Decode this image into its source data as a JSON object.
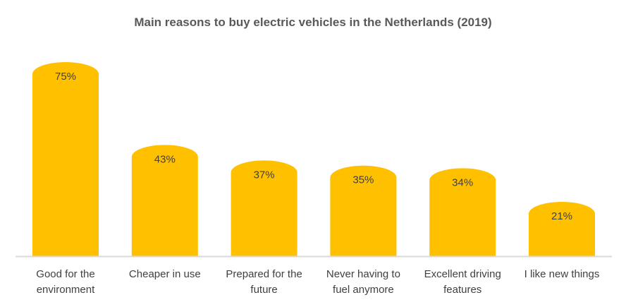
{
  "chart_data": {
    "type": "bar",
    "title": "Main reasons to buy electric vehicles in the Netherlands (2019)",
    "categories": [
      [
        "Good for the",
        "environment"
      ],
      [
        "Cheaper in use"
      ],
      [
        "Prepared for the",
        "future"
      ],
      [
        "Never having to",
        "fuel anymore"
      ],
      [
        "Excellent driving",
        "features"
      ],
      [
        "I like new things"
      ]
    ],
    "values": [
      75,
      43,
      37,
      35,
      34,
      21
    ],
    "data_labels": [
      "75%",
      "43%",
      "37%",
      "35%",
      "34%",
      "21%"
    ],
    "unit": "%",
    "ylim": [
      0,
      75
    ],
    "grid": false,
    "legend": "none",
    "bar_color": "#FFC000",
    "axis_color": "#D9D9D9"
  }
}
